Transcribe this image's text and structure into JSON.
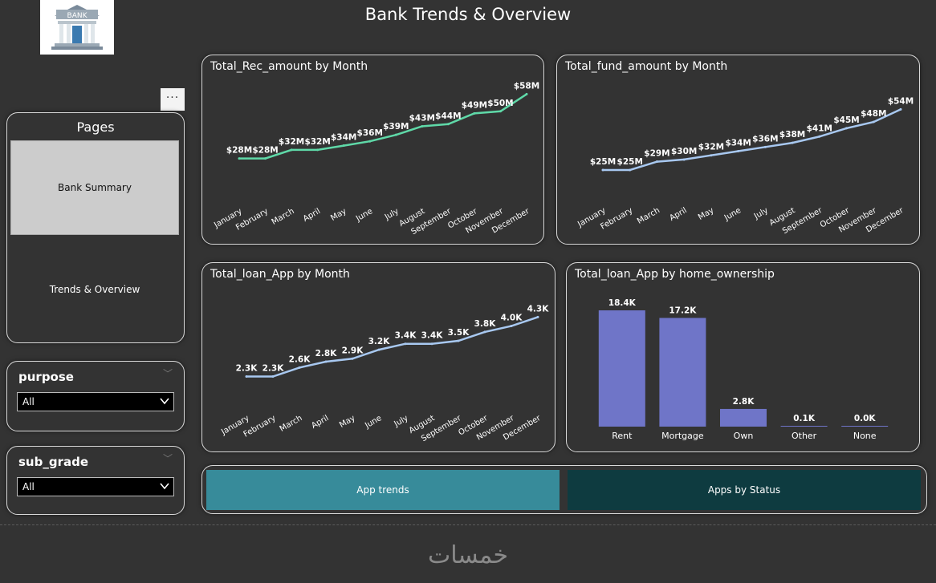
{
  "header": {
    "title": "Bank Trends & Overview",
    "logo_text": "BANK"
  },
  "more_menu": {
    "label": "···"
  },
  "pages": {
    "title": "Pages",
    "items": [
      "Bank Summary",
      "Trends & Overview"
    ]
  },
  "slicers": [
    {
      "label": "purpose",
      "value": "All"
    },
    {
      "label": "sub_grade",
      "value": "All"
    }
  ],
  "icons": {
    "dropdown": "chevron-down-icon",
    "collapse": "chevron-down-icon",
    "logo": "bank-building-icon"
  },
  "colors": {
    "rec_line": "#5fd9a8",
    "blue_line": "#a8c8f0",
    "bar": "#6f75c8",
    "btn_active": "#378b9a",
    "btn_inactive": "#0e3b40"
  },
  "chart_data": [
    {
      "type": "line",
      "title": "Total_Rec_amount by Month",
      "categories": [
        "January",
        "February",
        "March",
        "April",
        "May",
        "June",
        "July",
        "August",
        "September",
        "October",
        "November",
        "December"
      ],
      "values": [
        28,
        28,
        32,
        32,
        34,
        36,
        39,
        43,
        44,
        49,
        50,
        58
      ],
      "labels": [
        "$28M",
        "$28M",
        "$32M",
        "$32M",
        "$34M",
        "$36M",
        "$39M",
        "$43M",
        "$44M",
        "$49M",
        "$50M",
        "$58M"
      ],
      "ylim": [
        20,
        60
      ]
    },
    {
      "type": "line",
      "title": "Total_fund_amount by Month",
      "categories": [
        "January",
        "February",
        "March",
        "April",
        "May",
        "June",
        "July",
        "August",
        "September",
        "October",
        "November",
        "December"
      ],
      "values": [
        25,
        25,
        29,
        30,
        32,
        34,
        36,
        38,
        41,
        45,
        48,
        54
      ],
      "labels": [
        "$25M",
        "$25M",
        "$29M",
        "$30M",
        "$32M",
        "$34M",
        "$36M",
        "$38M",
        "$41M",
        "$45M",
        "$48M",
        "$54M"
      ],
      "ylim": [
        20,
        58
      ]
    },
    {
      "type": "line",
      "title": "Total_loan_App by Month",
      "categories": [
        "January",
        "February",
        "March",
        "April",
        "May",
        "June",
        "July",
        "August",
        "September",
        "October",
        "November",
        "December"
      ],
      "values": [
        2.3,
        2.3,
        2.6,
        2.8,
        2.9,
        3.2,
        3.4,
        3.4,
        3.5,
        3.8,
        4.0,
        4.3
      ],
      "labels": [
        "2.3K",
        "2.3K",
        "2.6K",
        "2.8K",
        "2.9K",
        "3.2K",
        "3.4K",
        "3.4K",
        "3.5K",
        "3.8K",
        "4.0K",
        "4.3K"
      ],
      "ylim": [
        1.8,
        4.5
      ]
    },
    {
      "type": "bar",
      "title": "Total_loan_App by home_ownership",
      "categories": [
        "Rent",
        "Mortgage",
        "Own",
        "Other",
        "None"
      ],
      "values": [
        18.4,
        17.2,
        2.8,
        0.1,
        0.0
      ],
      "labels": [
        "18.4K",
        "17.2K",
        "2.8K",
        "0.1K",
        "0.0K"
      ],
      "ylim": [
        0,
        18.4
      ]
    }
  ],
  "buttons": [
    {
      "label": "App trends",
      "active": true
    },
    {
      "label": "Apps by Status",
      "active": false
    }
  ],
  "watermark": "خمسات"
}
